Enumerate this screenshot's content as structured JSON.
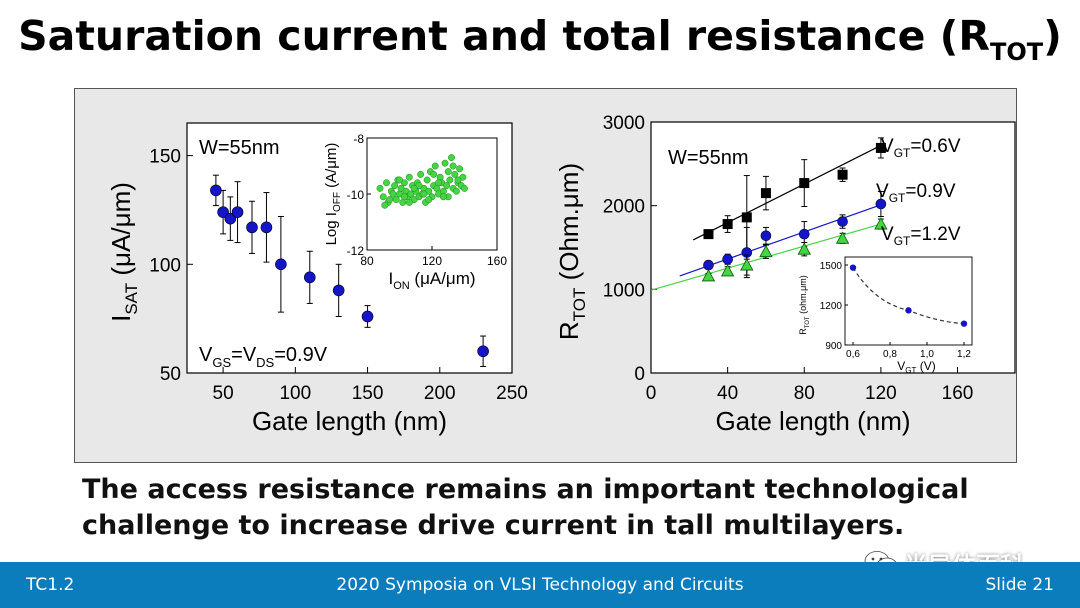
{
  "slide": {
    "title_main": "Saturation current and total resistance (R",
    "title_sub": "TOT",
    "title_close": ")",
    "caption_line1": "The access resistance remains an important technological",
    "caption_line2": "challenge to increase drive current in tall multilayers.",
    "footer_left": "TC1.2",
    "footer_center": "2020 Symposia on VLSI Technology and Circuits",
    "footer_right": "Slide 21",
    "watermark_text": "半导体百科"
  },
  "colors": {
    "accent": "#0b7dbd",
    "blue_marker": "#1515c8",
    "green_marker": "#44d444",
    "panel": "#e8e8e8"
  },
  "chart_data": [
    {
      "type": "scatter",
      "annotation": "W=55nm",
      "condition": {
        "prefix": "V",
        "s1": "GS",
        "mid": "=V",
        "s2": "DS",
        "suffix": "=0.9V"
      },
      "xlabel": "Gate length (nm)",
      "ylabel": {
        "main": "I",
        "sub": "SAT",
        "rest": " (μA/μm)"
      },
      "xlim": [
        25,
        250
      ],
      "ylim": [
        50,
        165
      ],
      "xticks": [
        50,
        100,
        150,
        200,
        250
      ],
      "yticks": [
        50,
        100,
        150
      ],
      "series": [
        {
          "marker": "circle",
          "color": "#1515c8",
          "x": [
            45,
            50,
            55,
            60,
            70,
            80,
            90,
            110,
            130,
            150,
            230
          ],
          "y": [
            134,
            124,
            121,
            124,
            117,
            117,
            100,
            94,
            88,
            76,
            60
          ],
          "err": [
            7,
            10,
            10,
            14,
            12,
            16,
            22,
            12,
            12,
            5,
            7
          ]
        }
      ]
    },
    {
      "type": "scatter",
      "inset": true,
      "xlabel": {
        "main": "I",
        "sub": "ON",
        "rest": " (μA/μm)"
      },
      "ylabel": {
        "main": "Log I",
        "sub": "OFF",
        "rest": " (A/μm)"
      },
      "xlim": [
        80,
        160
      ],
      "ylim": [
        -12,
        -8
      ],
      "xticks": [
        80,
        120,
        160
      ],
      "yticks": [
        -8,
        -10,
        -12
      ],
      "color": "#44d444",
      "x": [
        88,
        90,
        92,
        93,
        95,
        96,
        97,
        98,
        99,
        100,
        101,
        102,
        103,
        104,
        105,
        106,
        107,
        108,
        109,
        110,
        111,
        112,
        113,
        114,
        115,
        116,
        117,
        118,
        119,
        120,
        121,
        122,
        123,
        124,
        125,
        126,
        127,
        128,
        129,
        130,
        131,
        132,
        133,
        134,
        135,
        136,
        137,
        138,
        139,
        140,
        91,
        94,
        100,
        106,
        112,
        118,
        124,
        130,
        136,
        103,
        109,
        115,
        121,
        127,
        133
      ],
      "y": [
        -9.8,
        -10.1,
        -9.6,
        -10.3,
        -9.9,
        -10.0,
        -9.7,
        -10.2,
        -9.5,
        -10.0,
        -9.8,
        -10.3,
        -9.6,
        -9.9,
        -10.1,
        -9.4,
        -10.0,
        -9.7,
        -10.2,
        -9.9,
        -9.6,
        -10.1,
        -9.3,
        -10.0,
        -9.8,
        -10.3,
        -9.5,
        -9.9,
        -9.2,
        -10.1,
        -9.7,
        -9.0,
        -9.8,
        -10.0,
        -9.4,
        -9.6,
        -9.9,
        -8.9,
        -9.7,
        -10.1,
        -9.5,
        -8.7,
        -9.8,
        -9.3,
        -9.9,
        -9.6,
        -9.1,
        -9.7,
        -9.4,
        -9.8,
        -10.4,
        -10.2,
        -9.5,
        -10.3,
        -9.7,
        -10.2,
        -9.6,
        -9.2,
        -9.5,
        -10.1,
        -9.8,
        -10.0,
        -9.3,
        -10.1,
        -9.0
      ]
    },
    {
      "type": "line",
      "annotation": "W=55nm",
      "xlabel": "Gate length (nm)",
      "ylabel": {
        "main": "R",
        "sub": "TOT",
        "rest": " (Ohm.μm)"
      },
      "xlim": [
        0,
        190
      ],
      "ylim": [
        0,
        3000
      ],
      "xticks": [
        0,
        40,
        80,
        120,
        160
      ],
      "yticks": [
        0,
        1000,
        2000,
        3000
      ],
      "series": [
        {
          "name": "V_GT=0.6V",
          "label": {
            "main": "V",
            "sub": "GT",
            "rest": "=0.6V"
          },
          "marker": "square",
          "color": "#000000",
          "x": [
            30,
            40,
            50,
            60,
            80,
            100,
            120
          ],
          "y": [
            1660,
            1780,
            1860,
            2150,
            2270,
            2370,
            2690
          ],
          "err": [
            40,
            100,
            500,
            200,
            280,
            80,
            120
          ],
          "fit": [
            [
              22,
              1590
            ],
            [
              120,
              2720
            ]
          ]
        },
        {
          "name": "V_GT=0.9V",
          "label": {
            "main": "V",
            "sub": "GT",
            "rest": "=0.9V"
          },
          "marker": "circle",
          "color": "#1515c8",
          "x": [
            30,
            40,
            50,
            60,
            80,
            100,
            120
          ],
          "y": [
            1290,
            1360,
            1440,
            1640,
            1660,
            1810,
            2020
          ],
          "err": [
            40,
            60,
            300,
            100,
            150,
            80,
            150
          ],
          "fit": [
            [
              15,
              1160
            ],
            [
              120,
              2010
            ]
          ]
        },
        {
          "name": "V_GT=1.2V",
          "label": {
            "main": "V",
            "sub": "GT",
            "rest": "=1.2V"
          },
          "marker": "triangle",
          "color": "#44d444",
          "x": [
            30,
            40,
            50,
            60,
            80,
            100,
            120
          ],
          "y": [
            1160,
            1220,
            1290,
            1450,
            1480,
            1610,
            1780
          ],
          "err": [
            30,
            50,
            120,
            80,
            80,
            60,
            60
          ],
          "fit": [
            [
              0,
              990
            ],
            [
              120,
              1780
            ]
          ]
        }
      ]
    },
    {
      "type": "line",
      "inset": true,
      "xlabel": {
        "main": "V",
        "sub": "GT",
        "rest": " (V)"
      },
      "ylabel": {
        "main": "R",
        "sub": "TOT",
        "rest": " (ohm.μm)"
      },
      "xlim": [
        0.6,
        1.2
      ],
      "ylim": [
        900,
        1500
      ],
      "xticks": [
        "0,6",
        "0,8",
        "1,0",
        "1,2"
      ],
      "xtick_values": [
        0.6,
        0.8,
        1.0,
        1.2
      ],
      "yticks": [
        900,
        1200,
        1500
      ],
      "color": "#1515c8",
      "x": [
        0.6,
        0.9,
        1.2
      ],
      "y": [
        1480,
        1160,
        1060
      ],
      "curve": "dashed"
    }
  ]
}
